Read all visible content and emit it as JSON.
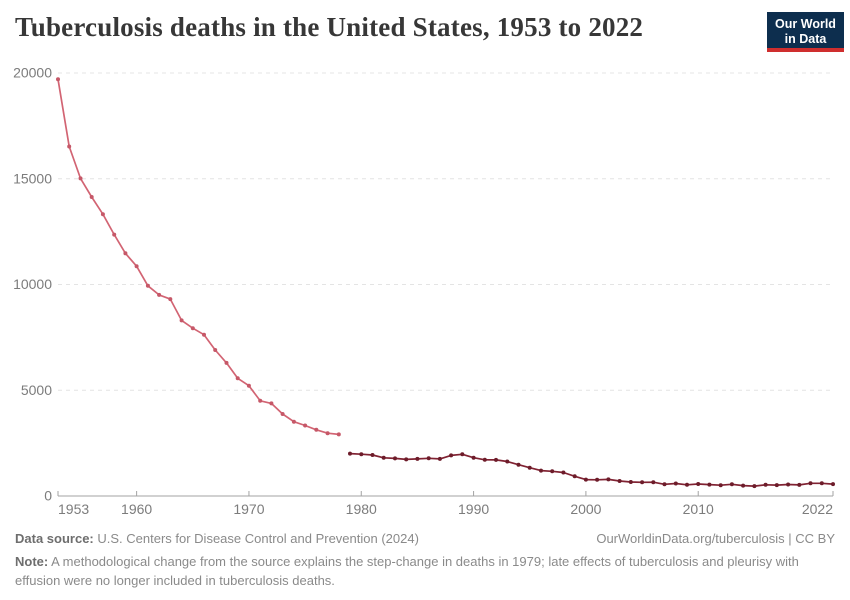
{
  "header": {
    "title": "Tuberculosis deaths in the United States, 1953 to 2022",
    "logo": {
      "line1": "Our World",
      "line2": "in Data",
      "bg_color": "#0d2e4e",
      "stripe_color": "#cf2e2e"
    }
  },
  "footer": {
    "datasource_label": "Data source:",
    "datasource_text": " U.S. Centers for Disease Control and Prevention (2024)",
    "link_text": "OurWorldinData.org/tuberculosis | CC BY",
    "note_label": "Note:",
    "note_text": " A methodological change from the source explains the step-change in deaths in 1979; late effects of tuberculosis and pleurisy with effusion were no longer included in tuberculosis deaths."
  },
  "chart_data": {
    "type": "line",
    "title": "Tuberculosis deaths in the United States, 1953 to 2022",
    "xlabel": "",
    "ylabel": "",
    "xlim": [
      1953,
      2022
    ],
    "ylim": [
      0,
      20000
    ],
    "yticks": [
      0,
      5000,
      10000,
      15000,
      20000
    ],
    "ytick_labels": [
      "0",
      "5000",
      "10000",
      "15000",
      "20000"
    ],
    "xticks": [
      1953,
      1960,
      1970,
      1980,
      1990,
      2000,
      2010,
      2022
    ],
    "grid": "horizontal-dashed",
    "legend": "none",
    "gap_note": "Line is broken between 1978 and 1979 (methodological step-change); earlier segment drawn lighter",
    "axis_color": "#a3a3a3",
    "grid_color": "#e4e4e4",
    "tick_label_color": "#7c7c7c",
    "series": [
      {
        "name": "1953-1978",
        "color": "#d26473",
        "marker_color": "#c65868",
        "x": [
          1953,
          1954,
          1955,
          1956,
          1957,
          1958,
          1959,
          1960,
          1961,
          1962,
          1963,
          1964,
          1965,
          1966,
          1967,
          1968,
          1969,
          1970,
          1971,
          1972,
          1973,
          1974,
          1975,
          1976,
          1977,
          1978
        ],
        "values": [
          19707,
          16527,
          15016,
          14137,
          13324,
          12361,
          11474,
          10866,
          9938,
          9506,
          9311,
          8303,
          7934,
          7625,
          6901,
          6292,
          5567,
          5217,
          4501,
          4376,
          3875,
          3513,
          3333,
          3130,
          2968,
          2914
        ]
      },
      {
        "name": "1979-2022",
        "color": "#802232",
        "marker_color": "#6d1c2a",
        "x": [
          1979,
          1980,
          1981,
          1982,
          1983,
          1984,
          1985,
          1986,
          1987,
          1988,
          1989,
          1990,
          1991,
          1992,
          1993,
          1994,
          1995,
          1996,
          1997,
          1998,
          1999,
          2000,
          2001,
          2002,
          2003,
          2004,
          2005,
          2006,
          2007,
          2008,
          2009,
          2010,
          2011,
          2012,
          2013,
          2014,
          2015,
          2016,
          2017,
          2018,
          2019,
          2020,
          2021,
          2022
        ],
        "values": [
          2007,
          1978,
          1937,
          1807,
          1779,
          1729,
          1752,
          1782,
          1755,
          1921,
          1970,
          1810,
          1713,
          1705,
          1631,
          1478,
          1336,
          1202,
          1166,
          1112,
          930,
          776,
          764,
          784,
          711,
          662,
          648,
          652,
          554,
          590,
          529,
          569,
          539,
          510,
          555,
          493,
          470,
          528,
          515,
          542,
          526,
          600,
          602,
          565
        ]
      }
    ]
  }
}
